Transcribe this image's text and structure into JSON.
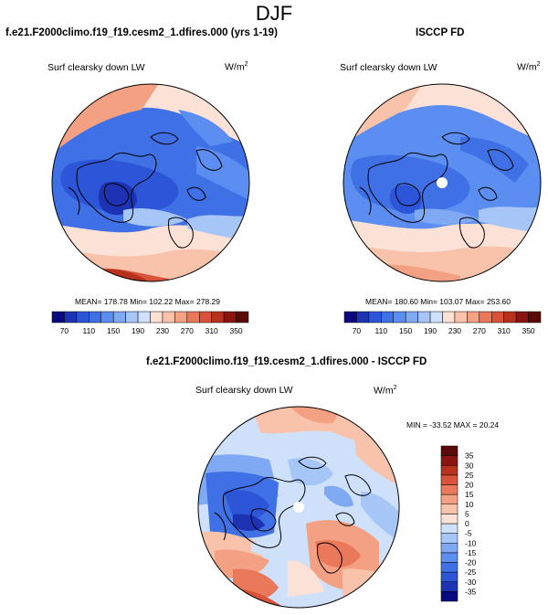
{
  "figure": {
    "season": "DJF"
  },
  "panels": {
    "model": {
      "title": "f.e21.F2000climo.f19_f19.cesm2_1.dfires.000 (yrs 1-19)",
      "variable": "Surf clearsky down LW",
      "units_base": "W/m",
      "units_exp": "2",
      "stats": "MEAN= 178.78  Min= 102.22  Max= 278.29"
    },
    "obs": {
      "title": "ISCCP FD",
      "variable": "Surf clearsky down LW",
      "units_base": "W/m",
      "units_exp": "2",
      "stats": "MEAN= 180.60  Min= 103.07  Max= 253.60"
    },
    "diff": {
      "title": "f.e21.F2000climo.f19_f19.cesm2_1.dfires.000 - ISCCP FD",
      "variable": "Surf clearsky down LW",
      "units_base": "W/m",
      "units_exp": "2",
      "stats": "MIN = -33.52 MAX =  20.24"
    }
  },
  "chart_data": [
    {
      "type": "heatmap",
      "name": "model",
      "projection": "north-polar-stereographic",
      "title": "f.e21.F2000climo.f19_f19.cesm2_1.dfires.000 (yrs 1-19)",
      "variable": "Surf clearsky down LW",
      "units": "W/m^2",
      "mean": 178.78,
      "min": 102.22,
      "max": 278.29,
      "colorbar": {
        "orientation": "horizontal",
        "levels": [
          70,
          90,
          110,
          130,
          150,
          170,
          190,
          210,
          230,
          250,
          270,
          290,
          310,
          330,
          350
        ],
        "tick_labels": [
          "70",
          "110",
          "150",
          "190",
          "230",
          "270",
          "310",
          "350"
        ],
        "colors": [
          "#0a0a80",
          "#1e32b4",
          "#2c55d8",
          "#3f70e6",
          "#5b8ef0",
          "#7fa9f3",
          "#a6c6f7",
          "#cfe0fa",
          "#fbe1d6",
          "#f9c3ab",
          "#f4a083",
          "#ea785b",
          "#d9533a",
          "#b8301e",
          "#8a1510",
          "#5c0a08"
        ]
      }
    },
    {
      "type": "heatmap",
      "name": "obs",
      "projection": "north-polar-stereographic",
      "title": "ISCCP FD",
      "variable": "Surf clearsky down LW",
      "units": "W/m^2",
      "mean": 180.6,
      "min": 103.07,
      "max": 253.6,
      "colorbar": {
        "orientation": "horizontal",
        "levels": [
          70,
          90,
          110,
          130,
          150,
          170,
          190,
          210,
          230,
          250,
          270,
          290,
          310,
          330,
          350
        ],
        "tick_labels": [
          "70",
          "110",
          "150",
          "190",
          "230",
          "270",
          "310",
          "350"
        ],
        "colors": [
          "#0a0a80",
          "#1e32b4",
          "#2c55d8",
          "#3f70e6",
          "#5b8ef0",
          "#7fa9f3",
          "#a6c6f7",
          "#cfe0fa",
          "#fbe1d6",
          "#f9c3ab",
          "#f4a083",
          "#ea785b",
          "#d9533a",
          "#b8301e",
          "#8a1510",
          "#5c0a08"
        ]
      }
    },
    {
      "type": "heatmap",
      "name": "difference",
      "projection": "north-polar-stereographic",
      "title": "f.e21.F2000climo.f19_f19.cesm2_1.dfires.000 - ISCCP FD",
      "variable": "Surf clearsky down LW",
      "units": "W/m^2",
      "min": -33.52,
      "max": 20.24,
      "colorbar": {
        "orientation": "vertical",
        "levels": [
          -35,
          -30,
          -25,
          -20,
          -15,
          -10,
          -5,
          0,
          5,
          10,
          15,
          20,
          25,
          30,
          35
        ],
        "tick_labels": [
          "-35",
          "-30",
          "-25",
          "-20",
          "-15",
          "-10",
          "-5",
          "0",
          "5",
          "10",
          "15",
          "20",
          "25",
          "30",
          "35"
        ],
        "colors": [
          "#0a0a80",
          "#1e32b4",
          "#2c55d8",
          "#3f70e6",
          "#5b8ef0",
          "#7fa9f3",
          "#a6c6f7",
          "#cfe0fa",
          "#fbe1d6",
          "#f9c3ab",
          "#f4a083",
          "#ea785b",
          "#d9533a",
          "#b8301e",
          "#8a1510",
          "#5c0a08"
        ]
      }
    }
  ]
}
